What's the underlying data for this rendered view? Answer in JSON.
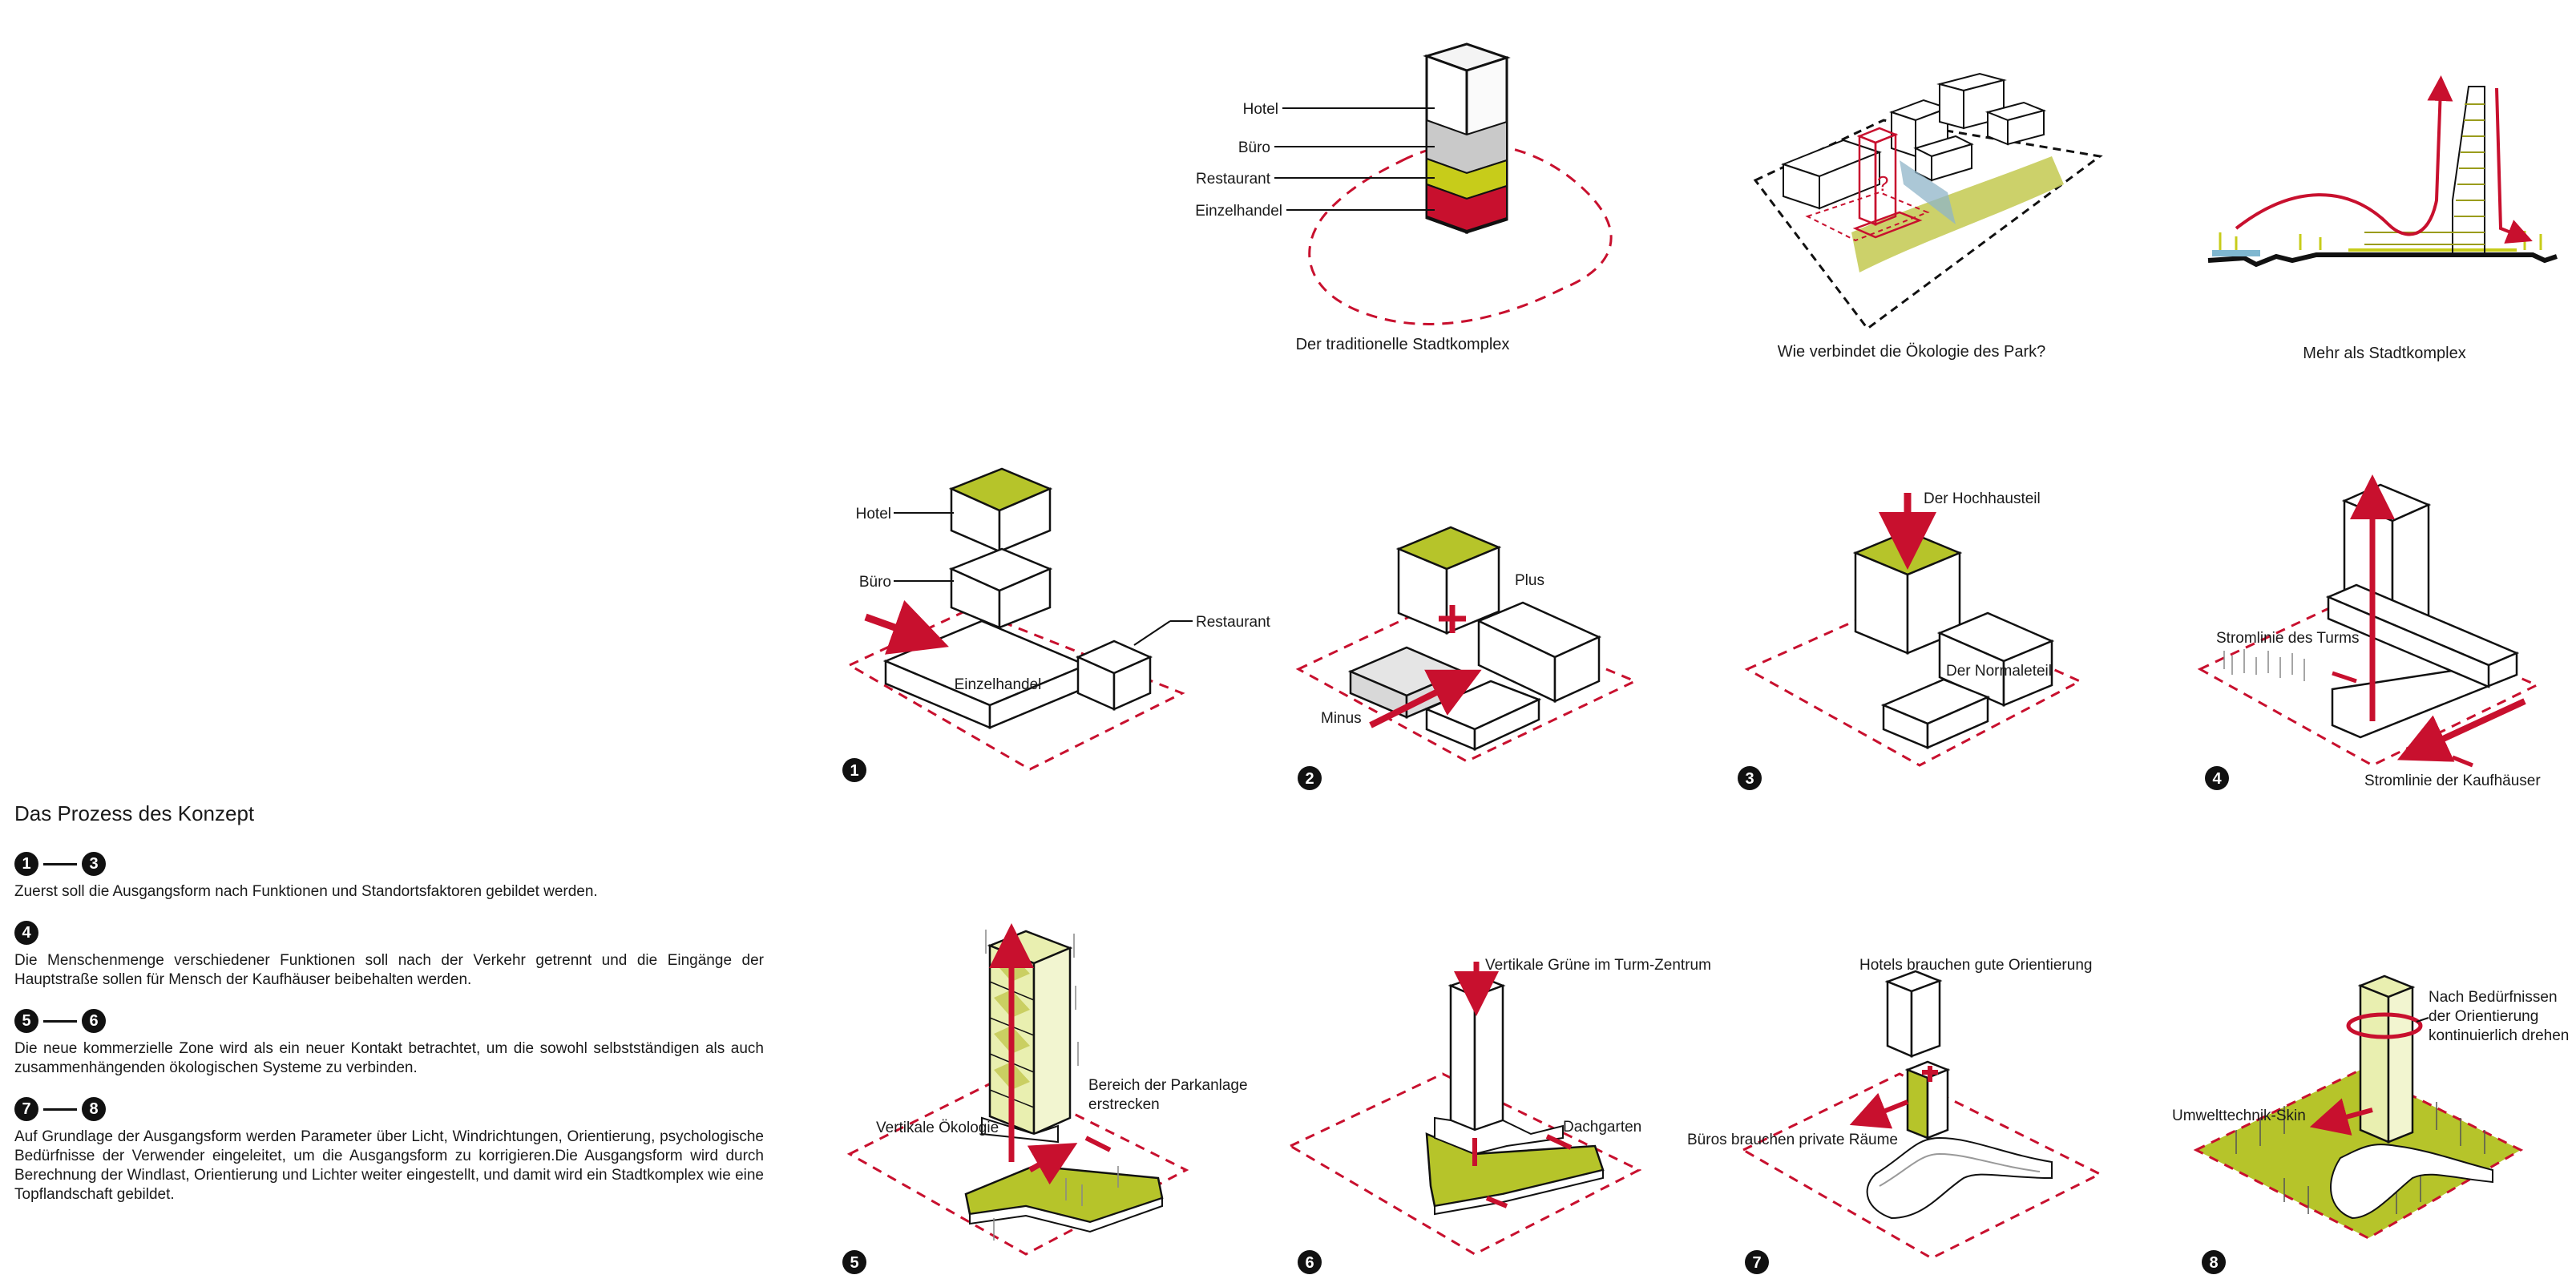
{
  "colors": {
    "accent_red": "#c8102e",
    "green": "#b6c42a",
    "ink": "#111111"
  },
  "top_row": {
    "d1": {
      "caption": "Der traditionelle Stadtkomplex",
      "labels": [
        "Hotel",
        "Büro",
        "Restaurant",
        "Einzelhandel"
      ]
    },
    "d2": {
      "caption": "Wie verbindet die Ökologie des Park?",
      "question_mark": "?"
    },
    "d3": {
      "caption": "Mehr als Stadtkomplex"
    }
  },
  "steps": [
    {
      "number": "1",
      "labels": [
        "Hotel",
        "Büro",
        "Restaurant",
        "Einzelhandel"
      ]
    },
    {
      "number": "2",
      "labels": [
        "Plus",
        "Minus"
      ]
    },
    {
      "number": "3",
      "labels": [
        "Der Hochhausteil",
        "Der Normaleteil"
      ]
    },
    {
      "number": "4",
      "labels": [
        "Stromlinie des Turms",
        "Stromlinie der Kaufhäuser"
      ]
    },
    {
      "number": "5",
      "labels": [
        "Vertikale Ökologie",
        "Bereich der Parkanlage",
        "erstrecken"
      ]
    },
    {
      "number": "6",
      "labels": [
        "Vertikale Grüne im Turm-Zentrum",
        "Dachgarten"
      ]
    },
    {
      "number": "7",
      "labels": [
        "Hotels brauchen gute Orientierung",
        "Büros brauchen private Räume"
      ]
    },
    {
      "number": "8",
      "labels": [
        "Nach Bedürfnissen",
        "der Orientierung",
        "kontinuierlich drehen",
        "Umwelttechnik-Skin"
      ]
    }
  ],
  "panel": {
    "title": "Das Prozess des Konzept",
    "items": [
      {
        "from": "1",
        "to": "3",
        "text": "Zuerst soll die Ausgangsform nach Funktionen und Standortsfaktoren gebildet werden."
      },
      {
        "from": "4",
        "to": "",
        "text": "Die Menschenmenge verschiedener Funktionen soll nach der Verkehr getrennt und die Eingänge der Hauptstraße sollen für Mensch der Kaufhäuser beibehalten werden."
      },
      {
        "from": "5",
        "to": "6",
        "text": "Die neue kommerzielle Zone wird als ein neuer Kontakt betrachtet, um die sowohl selbstständigen als auch zusammenhängenden ökologischen Systeme zu verbinden."
      },
      {
        "from": "7",
        "to": "8",
        "text": "Auf Grundlage der Ausgangsform werden Parameter über Licht, Windrichtungen, Orientierung, psychologische Bedürfnisse der Verwender eingeleitet, um die Ausgangsform zu korrigieren.Die Ausgangsform wird durch Berechnung der Windlast, Orientierung und Lichter weiter eingestellt, und damit wird ein Stadtkomplex wie eine Topflandschaft gebildet."
      }
    ]
  }
}
